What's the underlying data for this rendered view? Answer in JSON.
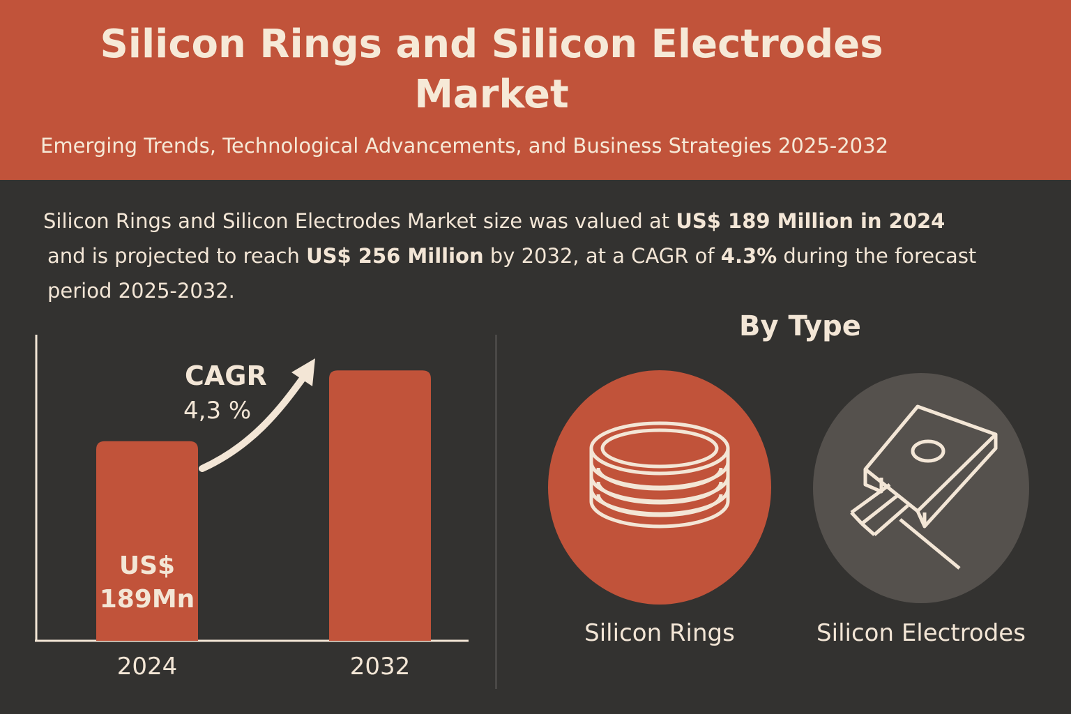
{
  "header": {
    "title_line1": "Silicon Rings and Silicon Electrodes",
    "title_line2": "Market",
    "subtitle": "Emerging Trends, Technological Advancements, and Business Strategies 2025-2032"
  },
  "summary": {
    "p1": "Silicon Rings and Silicon Electrodes Market size was valued at ",
    "b1": "US$ 189 Million in 2024",
    "p2": "and is projected to reach ",
    "b2": "US$ 256 Million",
    "p3": " by 2032, at a CAGR of ",
    "b3": "4.3%",
    "p4": " during the forecast",
    "p5": "period 2025-2032."
  },
  "chart_data": {
    "type": "bar",
    "categories": [
      "2024",
      "2032"
    ],
    "values": [
      189,
      256
    ],
    "value_labels": [
      "US$\n189Mn",
      ""
    ],
    "annotation": {
      "line1": "CAGR",
      "line2": "4,3 %"
    },
    "title": "",
    "xlabel": "",
    "ylabel": "",
    "ylim": [
      0,
      270
    ],
    "grid": false
  },
  "by_type": {
    "heading": "By Type",
    "items": [
      {
        "label": "Silicon Rings",
        "icon": "rings-stack-icon",
        "color": "#c1533a"
      },
      {
        "label": "Silicon Electrodes",
        "icon": "electrode-icon",
        "color": "#55514d"
      }
    ]
  },
  "colors": {
    "accent": "#c1533a",
    "background": "#333230",
    "text": "#f3e6d6"
  }
}
